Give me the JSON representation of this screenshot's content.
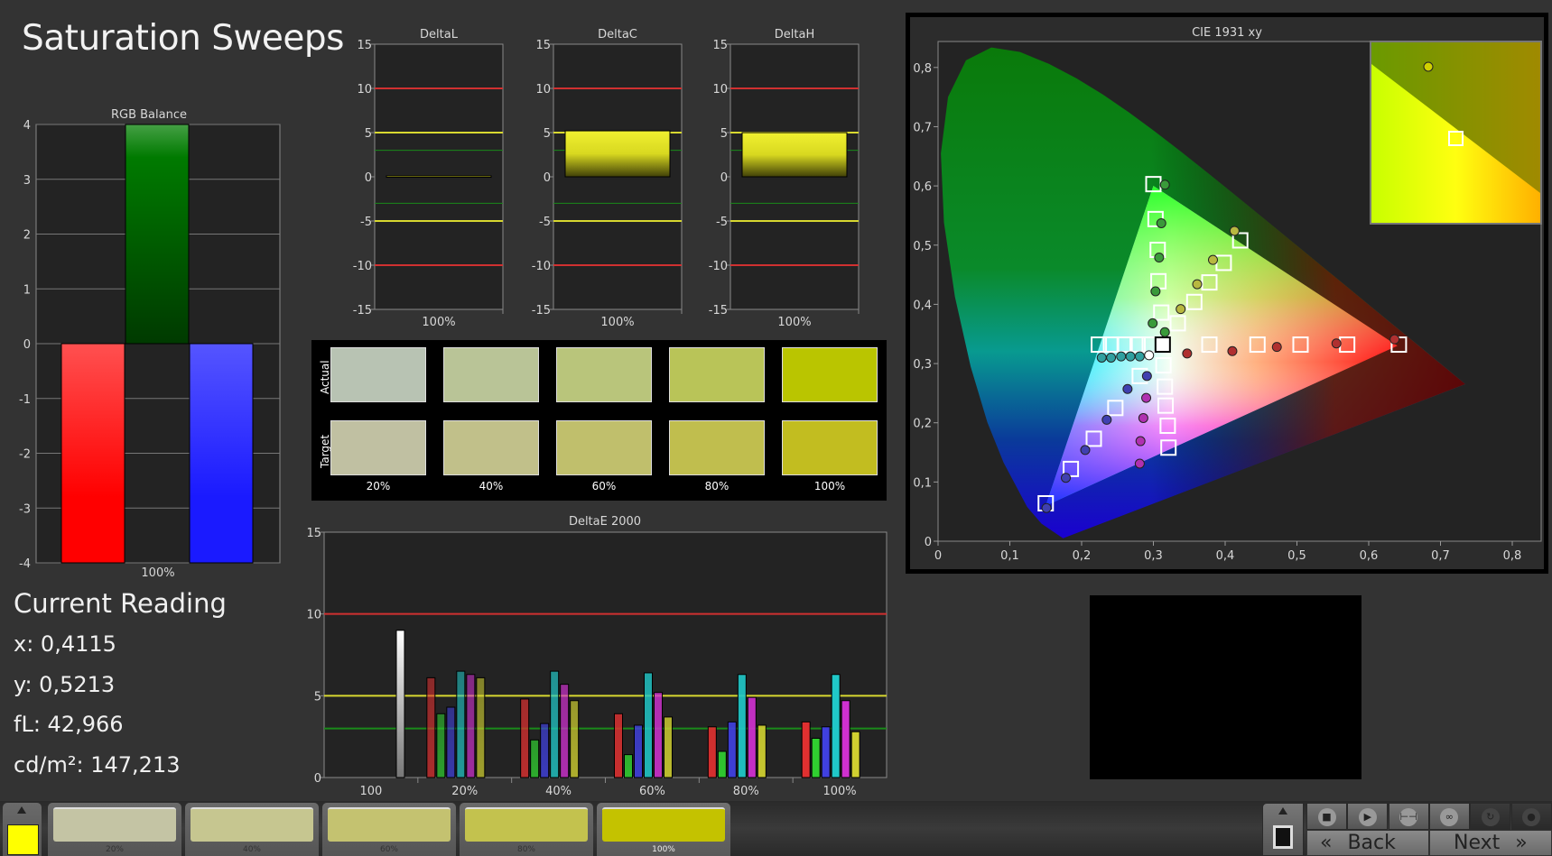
{
  "title": "Saturation Sweeps",
  "current_reading": {
    "heading": "Current Reading",
    "lines": [
      "x: 0,4115",
      "y: 0,5213",
      "fL: 42,966",
      "cd/m²: 147,213"
    ]
  },
  "swatches": {
    "row_labels": [
      "Actual",
      "Target"
    ],
    "columns": [
      "20%",
      "40%",
      "60%",
      "80%",
      "100%"
    ],
    "actual_colors": [
      "#b8c3b3",
      "#b9c497",
      "#b9c57b",
      "#b9c458",
      "#bac500"
    ],
    "target_colors": [
      "#c0c0a2",
      "#c1c08a",
      "#c0bf6c",
      "#c0be4e",
      "#c2bd20"
    ]
  },
  "toolbar": {
    "current_color": "#ffff00",
    "swatches": [
      {
        "label": "20%",
        "color": "#c4c4a4"
      },
      {
        "label": "40%",
        "color": "#c6c690"
      },
      {
        "label": "60%",
        "color": "#c4c270"
      },
      {
        "label": "80%",
        "color": "#c3c24e"
      },
      {
        "label": "100%",
        "color": "#c4c200"
      }
    ],
    "controls": [
      "stop-icon",
      "play-icon",
      "fit-icon",
      "infinity-icon",
      "refresh-icon",
      "record-icon"
    ],
    "back": "Back",
    "next": "Next"
  },
  "chart_data": [
    {
      "type": "bar",
      "title": "RGB Balance",
      "categories": [
        "100%"
      ],
      "series": [
        {
          "color": "#ff2020",
          "values": [
            -4
          ]
        },
        {
          "color": "#0a8a0a",
          "values": [
            4
          ]
        },
        {
          "color": "#3838ff",
          "values": [
            -4
          ]
        }
      ],
      "ylim": [
        -4,
        4
      ],
      "yticks": [
        4,
        3,
        2,
        1,
        0,
        -1,
        -2,
        -3,
        -4
      ],
      "grid": true
    },
    {
      "type": "bar",
      "title": "DeltaL",
      "categories": [
        "100%"
      ],
      "values": [
        0.1
      ],
      "ylim": [
        -15,
        15
      ],
      "yticks": [
        15,
        10,
        5,
        0,
        -5,
        -10,
        -15
      ],
      "reference_lines": [
        {
          "value": 10,
          "color": "#d03030"
        },
        {
          "value": -10,
          "color": "#d03030"
        },
        {
          "value": 5,
          "color": "#d8d830"
        },
        {
          "value": -5,
          "color": "#d8d830"
        },
        {
          "value": 3,
          "color": "#1a8a1a"
        },
        {
          "value": -3,
          "color": "#1a8a1a"
        }
      ]
    },
    {
      "type": "bar",
      "title": "DeltaC",
      "categories": [
        "100%"
      ],
      "values": [
        5.2
      ],
      "ylim": [
        -15,
        15
      ],
      "yticks": [
        15,
        10,
        5,
        0,
        -5,
        -10,
        -15
      ],
      "reference_lines": [
        {
          "value": 10,
          "color": "#d03030"
        },
        {
          "value": -10,
          "color": "#d03030"
        },
        {
          "value": 5,
          "color": "#d8d830"
        },
        {
          "value": -5,
          "color": "#d8d830"
        },
        {
          "value": 3,
          "color": "#1a8a1a"
        },
        {
          "value": -3,
          "color": "#1a8a1a"
        }
      ]
    },
    {
      "type": "bar",
      "title": "DeltaH",
      "categories": [
        "100%"
      ],
      "values": [
        5.0
      ],
      "ylim": [
        -15,
        15
      ],
      "yticks": [
        15,
        10,
        5,
        0,
        -5,
        -10,
        -15
      ],
      "reference_lines": [
        {
          "value": 10,
          "color": "#d03030"
        },
        {
          "value": -10,
          "color": "#d03030"
        },
        {
          "value": 5,
          "color": "#d8d830"
        },
        {
          "value": -5,
          "color": "#d8d830"
        },
        {
          "value": 3,
          "color": "#1a8a1a"
        },
        {
          "value": -3,
          "color": "#1a8a1a"
        }
      ]
    },
    {
      "type": "bar",
      "title": "DeltaE 2000",
      "categories": [
        "100",
        "20%",
        "40%",
        "60%",
        "80%",
        "100%"
      ],
      "series": [
        {
          "color": "#ffffff",
          "values": [
            9.0,
            null,
            null,
            null,
            null,
            null
          ]
        },
        {
          "color": "#e03030",
          "values": [
            null,
            6.1,
            4.8,
            3.9,
            3.1,
            3.4
          ]
        },
        {
          "color": "#30d030",
          "values": [
            null,
            3.9,
            2.3,
            1.4,
            1.6,
            2.4
          ]
        },
        {
          "color": "#4040e0",
          "values": [
            null,
            4.3,
            3.3,
            3.2,
            3.4,
            3.1
          ]
        },
        {
          "color": "#20c8c8",
          "values": [
            null,
            6.5,
            6.5,
            6.4,
            6.3,
            6.3
          ]
        },
        {
          "color": "#d030d0",
          "values": [
            null,
            6.3,
            5.7,
            5.2,
            4.9,
            4.7
          ]
        },
        {
          "color": "#d0d030",
          "values": [
            null,
            6.1,
            4.7,
            3.7,
            3.2,
            2.8
          ]
        }
      ],
      "series_saturation": [
        1,
        0.3,
        0.5,
        0.7,
        0.85,
        1
      ],
      "ylim": [
        0,
        15
      ],
      "yticks": [
        0,
        5,
        10,
        15
      ],
      "reference_lines": [
        {
          "value": 10,
          "color": "#d03030"
        },
        {
          "value": 5,
          "color": "#d8d830"
        },
        {
          "value": 3,
          "color": "#1a8a1a"
        }
      ]
    },
    {
      "type": "scatter",
      "title": "CIE 1931 xy",
      "xlim": [
        0,
        0.85
      ],
      "ylim": [
        0,
        0.85
      ],
      "xticks": [
        "0",
        "0,1",
        "0,2",
        "0,3",
        "0,4",
        "0,5",
        "0,6",
        "0,7",
        "0,8"
      ],
      "yticks": [
        "0",
        "0,1",
        "0,2",
        "0,3",
        "0,4",
        "0,5",
        "0,6",
        "0,7",
        "0,8"
      ],
      "gamut_triangle": [
        [
          0.64,
          0.33
        ],
        [
          0.3,
          0.6
        ],
        [
          0.15,
          0.06
        ]
      ],
      "targets": {
        "green": [
          [
            0.3,
            0.603
          ],
          [
            0.303,
            0.544
          ],
          [
            0.306,
            0.492
          ],
          [
            0.307,
            0.439
          ],
          [
            0.311,
            0.386
          ]
        ],
        "yellow": [
          [
            0.421,
            0.508
          ],
          [
            0.398,
            0.47
          ],
          [
            0.378,
            0.437
          ],
          [
            0.357,
            0.404
          ],
          [
            0.334,
            0.368
          ]
        ],
        "red": [
          [
            0.378,
            0.332
          ],
          [
            0.445,
            0.332
          ],
          [
            0.505,
            0.332
          ],
          [
            0.57,
            0.332
          ],
          [
            0.642,
            0.332
          ]
        ],
        "cyan": [
          [
            0.224,
            0.332
          ],
          [
            0.241,
            0.332
          ],
          [
            0.26,
            0.332
          ],
          [
            0.278,
            0.332
          ],
          [
            0.295,
            0.332
          ]
        ],
        "blue": [
          [
            0.281,
            0.279
          ],
          [
            0.247,
            0.225
          ],
          [
            0.217,
            0.173
          ],
          [
            0.185,
            0.122
          ],
          [
            0.15,
            0.064
          ]
        ],
        "magenta": [
          [
            0.314,
            0.297
          ],
          [
            0.316,
            0.261
          ],
          [
            0.317,
            0.229
          ],
          [
            0.32,
            0.195
          ],
          [
            0.321,
            0.158
          ]
        ],
        "white": [
          [
            0.313,
            0.332
          ]
        ]
      },
      "measured": {
        "green": [
          [
            0.316,
            0.353
          ],
          [
            0.299,
            0.368
          ],
          [
            0.303,
            0.422
          ],
          [
            0.308,
            0.479
          ],
          [
            0.311,
            0.537
          ],
          [
            0.316,
            0.602
          ]
        ],
        "yellow": [
          [
            0.338,
            0.392
          ],
          [
            0.361,
            0.434
          ],
          [
            0.383,
            0.475
          ],
          [
            0.413,
            0.524
          ]
        ],
        "red": [
          [
            0.347,
            0.317
          ],
          [
            0.41,
            0.321
          ],
          [
            0.472,
            0.328
          ],
          [
            0.555,
            0.334
          ],
          [
            0.636,
            0.341
          ]
        ],
        "cyan": [
          [
            0.228,
            0.31
          ],
          [
            0.241,
            0.31
          ],
          [
            0.255,
            0.312
          ],
          [
            0.268,
            0.312
          ],
          [
            0.281,
            0.312
          ]
        ],
        "blue": [
          [
            0.291,
            0.279
          ],
          [
            0.264,
            0.257
          ],
          [
            0.235,
            0.205
          ],
          [
            0.205,
            0.154
          ],
          [
            0.178,
            0.107
          ],
          [
            0.151,
            0.056
          ]
        ],
        "magenta": [
          [
            0.29,
            0.242
          ],
          [
            0.286,
            0.208
          ],
          [
            0.282,
            0.169
          ],
          [
            0.281,
            0.131
          ]
        ],
        "white": [
          [
            0.294,
            0.314
          ]
        ]
      },
      "series_colors": {
        "green": "#3a9a3a",
        "yellow": "#b8b840",
        "red": "#b03030",
        "cyan": "#30a0a0",
        "blue": "#4040b0",
        "magenta": "#b030b0",
        "white": "#ffffff"
      },
      "inset": {
        "measured": "#d0d000",
        "note_colors": [
          "#c8ff00",
          "#ffff00",
          "#ffb000"
        ]
      }
    }
  ]
}
